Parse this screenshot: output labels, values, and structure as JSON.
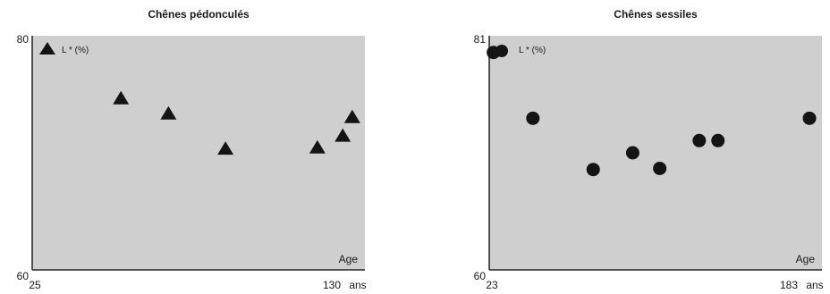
{
  "chart_data": [
    {
      "type": "scatter",
      "title": "Chênes pédonculés",
      "legend": "L * (%)",
      "marker": "triangle",
      "xlabel": "Age",
      "x_unit": "ans",
      "x_ticks": [
        "25",
        "130"
      ],
      "y_ticks": [
        "80",
        "60"
      ],
      "xlim": [
        25,
        130
      ],
      "ylim": [
        60,
        80
      ],
      "grid": false,
      "legend_position": "top-left",
      "points": [
        {
          "x": 53,
          "y": 74.6
        },
        {
          "x": 68,
          "y": 73.3
        },
        {
          "x": 86,
          "y": 70.3
        },
        {
          "x": 115,
          "y": 70.4
        },
        {
          "x": 123,
          "y": 71.4
        },
        {
          "x": 126,
          "y": 73.0
        }
      ]
    },
    {
      "type": "scatter",
      "title": "Chênes sessiles",
      "legend": "L * (%)",
      "marker": "circle",
      "xlabel": "Age",
      "x_unit": "ans",
      "x_ticks": [
        "23",
        "183"
      ],
      "y_ticks": [
        "81",
        "60"
      ],
      "xlim": [
        23,
        183
      ],
      "ylim": [
        60,
        81
      ],
      "grid": false,
      "legend_position": "top-left",
      "points": [
        {
          "x": 25,
          "y": 79.5
        },
        {
          "x": 44,
          "y": 73.6
        },
        {
          "x": 73,
          "y": 69.0
        },
        {
          "x": 92,
          "y": 70.5
        },
        {
          "x": 105,
          "y": 69.1
        },
        {
          "x": 124,
          "y": 71.6
        },
        {
          "x": 133,
          "y": 71.6
        },
        {
          "x": 177,
          "y": 73.6
        }
      ]
    }
  ],
  "colors": {
    "plot_background": "#cfcfcf",
    "marker": "#141414",
    "axis": "#222222",
    "text": "#1a1a1a"
  }
}
